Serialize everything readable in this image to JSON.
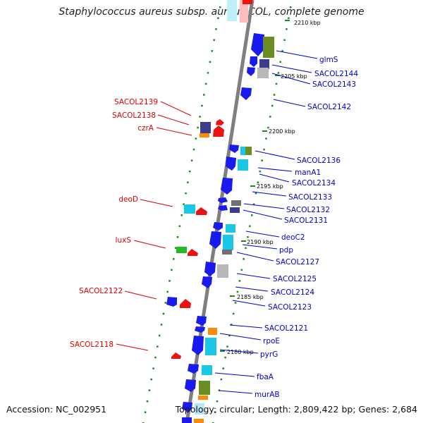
{
  "title": "Staphylococcus aureus subsp. aureus COL, complete genome",
  "footer": {
    "accession": "Accession: NC_002951",
    "topology": "Topology: circular; Length: 2,809,422 bp; Genes: 2,684"
  },
  "colors": {
    "forward_label": "#0000cc",
    "reverse_label": "#dd0000",
    "backbone": "#888888",
    "tick": "#1a8a1a",
    "gene_blue": "#1a1aee",
    "gene_cyan": "#19c8e6",
    "gene_olive": "#6b8e23",
    "gene_navy": "#3c3c8c",
    "gene_orange": "#ff8c00",
    "gene_red": "#ee1111",
    "gene_green": "#22bb22",
    "gene_gray": "#b8b8b8"
  },
  "tick_labels": [
    "2210 kbp",
    "2205 kbp",
    "2200 kbp",
    "2195 kbp",
    "2190 kbp",
    "2185 kbp",
    "2180 kbp"
  ],
  "forward_labels": [
    "glmS",
    "SACOL2144",
    "SACOL2143",
    "SACOL2142",
    "SACOL2136",
    "manA1",
    "SACOL2134",
    "SACOL2133",
    "SACOL2132",
    "SACOL2131",
    "deoC2",
    "pdp",
    "SACOL2127",
    "SACOL2125",
    "SACOL2124",
    "SACOL2123",
    "SACOL2121",
    "rpoE",
    "pyrG",
    "fbaA",
    "murAB"
  ],
  "reverse_labels": [
    "SACOL2139",
    "SACOL2138",
    "czrA",
    "deoD",
    "luxS",
    "SACOL2122",
    "SACOL2118"
  ]
}
